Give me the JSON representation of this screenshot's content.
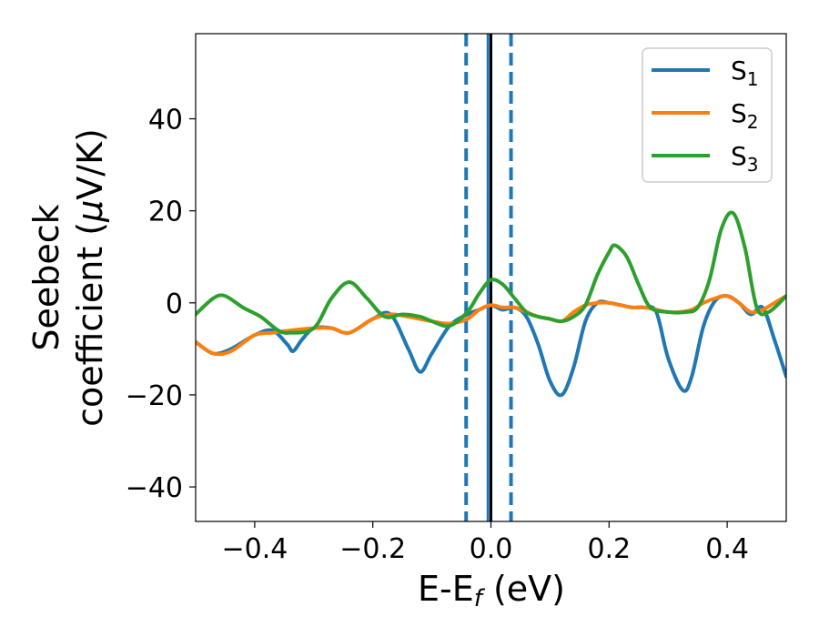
{
  "chart_data": {
    "type": "line",
    "xlabel": "E-E",
    "xlabel_sub": "f",
    "xlabel_unit": " (eV)",
    "ylabel_line1": "Seebeck",
    "ylabel_line2_pre": "coefficient  (",
    "ylabel_mu": "μ",
    "ylabel_line2_post": "V/K)",
    "xlim": [
      -0.5,
      0.5
    ],
    "ylim": [
      -47.5,
      58.5
    ],
    "xticks": [
      -0.4,
      -0.2,
      0.0,
      0.2,
      0.4
    ],
    "xtick_labels": [
      "−0.4",
      "−0.2",
      "0.0",
      "0.2",
      "0.4"
    ],
    "yticks": [
      -40,
      -20,
      0,
      20,
      40
    ],
    "ytick_labels": [
      "−40",
      "−20",
      "0",
      "20",
      "40"
    ],
    "grid": false,
    "legend_position": "top-right",
    "vlines": [
      {
        "x": -0.042,
        "style": "dashed",
        "color": "#1f77b4"
      },
      {
        "x": 0.034,
        "style": "dashed",
        "color": "#1f77b4"
      },
      {
        "x": -0.005,
        "style": "solid",
        "color": "#1f77b4"
      },
      {
        "x": 0.0,
        "style": "solid",
        "color": "#000000"
      }
    ],
    "series": [
      {
        "name": "S",
        "name_sub": "1",
        "color": "#1f77b4",
        "x": [
          -0.5,
          -0.47,
          -0.44,
          -0.4,
          -0.37,
          -0.345,
          -0.335,
          -0.32,
          -0.3,
          -0.27,
          -0.24,
          -0.2,
          -0.17,
          -0.14,
          -0.12,
          -0.1,
          -0.07,
          -0.04,
          -0.02,
          0.0,
          0.02,
          0.04,
          0.06,
          0.08,
          0.1,
          0.12,
          0.14,
          0.16,
          0.18,
          0.2,
          0.22,
          0.24,
          0.26,
          0.28,
          0.3,
          0.325,
          0.34,
          0.36,
          0.38,
          0.4,
          0.42,
          0.44,
          0.46,
          0.48,
          0.5
        ],
        "y": [
          -8.5,
          -11,
          -10,
          -7,
          -6,
          -9,
          -10.5,
          -8,
          -5.5,
          -5.5,
          -6.5,
          -3.5,
          -2.5,
          -10,
          -15,
          -11,
          -5,
          -2.5,
          -1.5,
          -0.5,
          -1.5,
          -1,
          -3,
          -9,
          -17,
          -20,
          -14,
          -4,
          0,
          0,
          -0.5,
          -1,
          -1,
          -2,
          -12,
          -19,
          -16,
          -5,
          0.5,
          1.5,
          0,
          -2.5,
          -1,
          -8,
          -16
        ]
      },
      {
        "name": "S",
        "name_sub": "2",
        "color": "#ff7f0e",
        "x": [
          -0.5,
          -0.47,
          -0.44,
          -0.4,
          -0.37,
          -0.34,
          -0.3,
          -0.27,
          -0.24,
          -0.2,
          -0.17,
          -0.14,
          -0.12,
          -0.1,
          -0.07,
          -0.04,
          -0.02,
          0.0,
          0.02,
          0.04,
          0.06,
          0.08,
          0.1,
          0.12,
          0.14,
          0.16,
          0.18,
          0.2,
          0.22,
          0.24,
          0.26,
          0.28,
          0.3,
          0.32,
          0.34,
          0.36,
          0.38,
          0.4,
          0.42,
          0.44,
          0.46,
          0.48,
          0.5
        ],
        "y": [
          -8.5,
          -11,
          -10.5,
          -7,
          -6.5,
          -6,
          -5.5,
          -5.5,
          -6.5,
          -3.5,
          -2.5,
          -3,
          -3.5,
          -4,
          -4.5,
          -3.5,
          -1.5,
          -0.5,
          -1,
          -1,
          -2,
          -3,
          -3.5,
          -4,
          -2,
          -0.5,
          0,
          0,
          -0.5,
          -1,
          -1,
          -1.5,
          -2,
          -2,
          -1.5,
          0,
          1,
          1.5,
          0,
          -2,
          -1.5,
          0,
          1.5
        ]
      },
      {
        "name": "S",
        "name_sub": "3",
        "color": "#2ca02c",
        "x": [
          -0.5,
          -0.47,
          -0.45,
          -0.42,
          -0.39,
          -0.36,
          -0.34,
          -0.3,
          -0.27,
          -0.24,
          -0.21,
          -0.18,
          -0.15,
          -0.12,
          -0.1,
          -0.07,
          -0.04,
          -0.02,
          0.0,
          0.02,
          0.04,
          0.06,
          0.08,
          0.1,
          0.12,
          0.14,
          0.16,
          0.18,
          0.2,
          0.21,
          0.23,
          0.25,
          0.27,
          0.3,
          0.33,
          0.35,
          0.37,
          0.39,
          0.41,
          0.43,
          0.45,
          0.47,
          0.5
        ],
        "y": [
          -2.5,
          1,
          1.5,
          -1,
          -3,
          -6,
          -6.5,
          -5.5,
          1,
          4.5,
          1,
          -3,
          -2.5,
          -3,
          -4,
          -5,
          -2,
          2,
          5,
          4,
          1,
          -2,
          -3,
          -3.5,
          -4,
          -3,
          -0.5,
          6,
          11,
          12.5,
          10,
          4,
          -1,
          -2,
          -2,
          -1,
          5,
          16,
          19.5,
          12,
          -1,
          -2,
          1.5
        ]
      }
    ]
  }
}
